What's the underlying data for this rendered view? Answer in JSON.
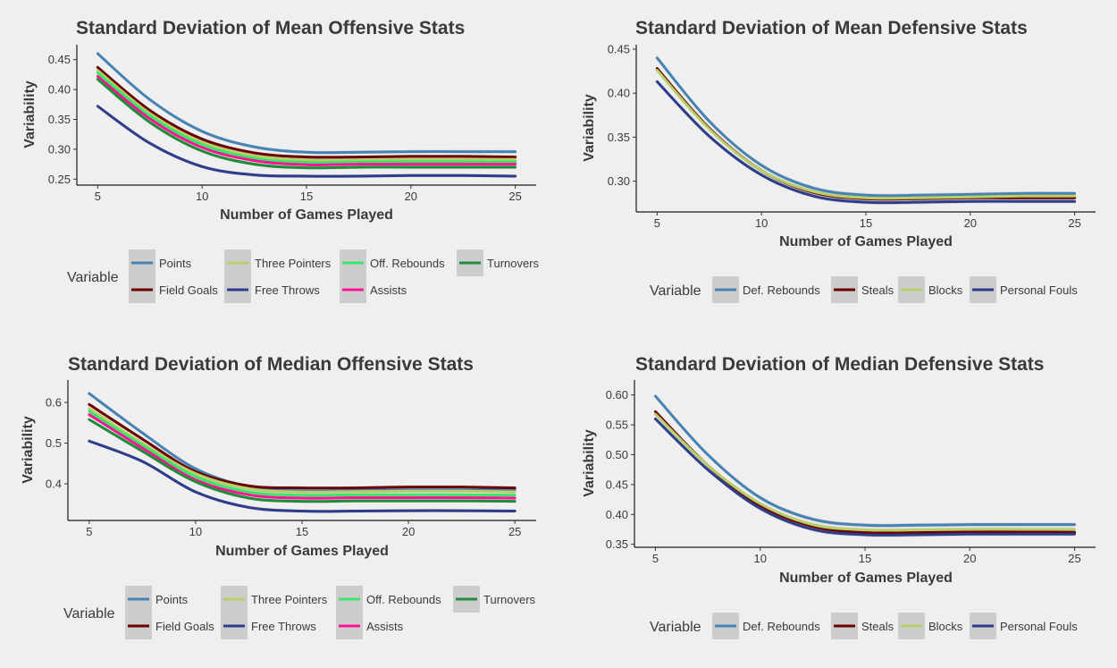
{
  "colors": {
    "Points": "#4682b4",
    "Field Goals": "#6b0000",
    "Three Pointers": "#b8cf68",
    "Free Throws": "#2e3c8c",
    "Off. Rebounds": "#3ae56b",
    "Assists": "#ff1493",
    "Turnovers": "#1e8c3a",
    "Def. Rebounds": "#4682b4",
    "Steals": "#6b0000",
    "Blocks": "#b8cf68",
    "Personal Fouls": "#2e3c8c",
    "ribbon": "#b8b8b8",
    "legend_key_bg": "#cdcdcd"
  },
  "chart_data": [
    {
      "type": "line",
      "title": "Standard Deviation of Mean Offensive Stats",
      "xlabel": "Number of Games Played",
      "ylabel": "Variability",
      "xlim": [
        4,
        26
      ],
      "ylim": [
        0.24,
        0.475
      ],
      "xticks": [
        5,
        10,
        15,
        20,
        25
      ],
      "yticks": [
        0.25,
        0.3,
        0.35,
        0.4,
        0.45
      ],
      "ytick_labels": [
        "0.25",
        "0.30",
        "0.35",
        "0.40",
        "0.45"
      ],
      "x": [
        5,
        7.5,
        10,
        12.5,
        15,
        17.5,
        20,
        22.5,
        25
      ],
      "legend_title": "Variable",
      "legend_rows": [
        [
          "Points",
          "Three Pointers",
          "Off. Rebounds",
          "Turnovers"
        ],
        [
          "Field Goals",
          "Free Throws",
          "Assists"
        ]
      ],
      "series": [
        {
          "name": "Points",
          "values": [
            0.46,
            0.383,
            0.33,
            0.304,
            0.295,
            0.295,
            0.296,
            0.296,
            0.296
          ]
        },
        {
          "name": "Field Goals",
          "values": [
            0.437,
            0.365,
            0.317,
            0.294,
            0.287,
            0.287,
            0.288,
            0.288,
            0.287
          ]
        },
        {
          "name": "Three Pointers",
          "values": [
            0.432,
            0.36,
            0.312,
            0.289,
            0.282,
            0.282,
            0.283,
            0.283,
            0.283
          ]
        },
        {
          "name": "Free Throws",
          "values": [
            0.372,
            0.31,
            0.271,
            0.257,
            0.255,
            0.255,
            0.256,
            0.256,
            0.255
          ]
        },
        {
          "name": "Off. Rebounds",
          "values": [
            0.428,
            0.356,
            0.308,
            0.285,
            0.278,
            0.279,
            0.279,
            0.279,
            0.279
          ]
        },
        {
          "name": "Assists",
          "values": [
            0.422,
            0.351,
            0.303,
            0.281,
            0.274,
            0.275,
            0.275,
            0.275,
            0.275
          ]
        },
        {
          "name": "Turnovers",
          "values": [
            0.417,
            0.345,
            0.297,
            0.275,
            0.269,
            0.27,
            0.27,
            0.27,
            0.27
          ]
        }
      ]
    },
    {
      "type": "line",
      "title": "Standard Deviation of Mean Defensive Stats",
      "xlabel": "Number of Games Played",
      "ylabel": "Variability",
      "xlim": [
        4,
        26
      ],
      "ylim": [
        0.265,
        0.455
      ],
      "xticks": [
        5,
        10,
        15,
        20,
        25
      ],
      "yticks": [
        0.3,
        0.35,
        0.4,
        0.45
      ],
      "ytick_labels": [
        "0.30",
        "0.35",
        "0.40",
        "0.45"
      ],
      "x": [
        5,
        7.5,
        10,
        12.5,
        15,
        17.5,
        20,
        22.5,
        25
      ],
      "legend_title": "Variable",
      "legend_rows": [
        [
          "Def. Rebounds",
          "Steals",
          "Blocks",
          "Personal Fouls"
        ]
      ],
      "series": [
        {
          "name": "Def. Rebounds",
          "values": [
            0.44,
            0.368,
            0.318,
            0.292,
            0.284,
            0.284,
            0.285,
            0.286,
            0.286
          ]
        },
        {
          "name": "Steals",
          "values": [
            0.428,
            0.36,
            0.312,
            0.287,
            0.28,
            0.28,
            0.281,
            0.281,
            0.281
          ]
        },
        {
          "name": "Blocks",
          "values": [
            0.426,
            0.359,
            0.312,
            0.288,
            0.281,
            0.281,
            0.282,
            0.283,
            0.283
          ]
        },
        {
          "name": "Personal Fouls",
          "values": [
            0.413,
            0.351,
            0.307,
            0.283,
            0.276,
            0.276,
            0.277,
            0.277,
            0.277
          ]
        }
      ]
    },
    {
      "type": "line",
      "title": "Standard Deviation of Median Offensive Stats",
      "xlabel": "Number of Games Played",
      "ylabel": "Variability",
      "xlim": [
        4,
        26
      ],
      "ylim": [
        0.31,
        0.655
      ],
      "xticks": [
        5,
        10,
        15,
        20,
        25
      ],
      "yticks": [
        0.4,
        0.5,
        0.6
      ],
      "ytick_labels": [
        "0.4",
        "0.5",
        "0.6"
      ],
      "x": [
        5,
        7.5,
        10,
        12.5,
        15,
        17.5,
        20,
        22.5,
        25
      ],
      "legend_title": "Variable",
      "legend_rows": [
        [
          "Points",
          "Three Pointers",
          "Off. Rebounds",
          "Turnovers"
        ],
        [
          "Field Goals",
          "Free Throws",
          "Assists"
        ]
      ],
      "series": [
        {
          "name": "Points",
          "values": [
            0.622,
            0.525,
            0.437,
            0.393,
            0.383,
            0.384,
            0.385,
            0.385,
            0.385
          ]
        },
        {
          "name": "Field Goals",
          "values": [
            0.595,
            0.51,
            0.43,
            0.395,
            0.39,
            0.39,
            0.392,
            0.392,
            0.39
          ]
        },
        {
          "name": "Three Pointers",
          "values": [
            0.585,
            0.5,
            0.425,
            0.388,
            0.38,
            0.381,
            0.382,
            0.382,
            0.38
          ]
        },
        {
          "name": "Free Throws",
          "values": [
            0.505,
            0.455,
            0.38,
            0.342,
            0.333,
            0.333,
            0.334,
            0.334,
            0.333
          ]
        },
        {
          "name": "Off. Rebounds",
          "values": [
            0.578,
            0.495,
            0.418,
            0.38,
            0.372,
            0.373,
            0.373,
            0.373,
            0.372
          ]
        },
        {
          "name": "Assists",
          "values": [
            0.57,
            0.488,
            0.41,
            0.373,
            0.365,
            0.366,
            0.366,
            0.366,
            0.365
          ]
        },
        {
          "name": "Turnovers",
          "values": [
            0.558,
            0.48,
            0.405,
            0.365,
            0.357,
            0.358,
            0.358,
            0.358,
            0.357
          ]
        }
      ]
    },
    {
      "type": "line",
      "title": "Standard Deviation of Median Defensive Stats",
      "xlabel": "Number of Games Played",
      "ylabel": "Variability",
      "xlim": [
        4,
        26
      ],
      "ylim": [
        0.345,
        0.625
      ],
      "xticks": [
        5,
        10,
        15,
        20,
        25
      ],
      "yticks": [
        0.35,
        0.4,
        0.45,
        0.5,
        0.55,
        0.6
      ],
      "ytick_labels": [
        "0.35",
        "0.40",
        "0.45",
        "0.50",
        "0.55",
        "0.60"
      ],
      "x": [
        5,
        7.5,
        10,
        12.5,
        15,
        17.5,
        20,
        22.5,
        25
      ],
      "legend_title": "Variable",
      "legend_rows": [
        [
          "Def. Rebounds",
          "Steals",
          "Blocks",
          "Personal Fouls"
        ]
      ],
      "series": [
        {
          "name": "Def. Rebounds",
          "values": [
            0.598,
            0.5,
            0.428,
            0.392,
            0.382,
            0.382,
            0.383,
            0.383,
            0.383
          ]
        },
        {
          "name": "Steals",
          "values": [
            0.572,
            0.482,
            0.415,
            0.38,
            0.37,
            0.37,
            0.371,
            0.371,
            0.37
          ]
        },
        {
          "name": "Blocks",
          "values": [
            0.568,
            0.482,
            0.418,
            0.383,
            0.374,
            0.374,
            0.375,
            0.375,
            0.375
          ]
        },
        {
          "name": "Personal Fouls",
          "values": [
            0.56,
            0.475,
            0.41,
            0.375,
            0.366,
            0.366,
            0.367,
            0.367,
            0.367
          ]
        }
      ]
    }
  ]
}
